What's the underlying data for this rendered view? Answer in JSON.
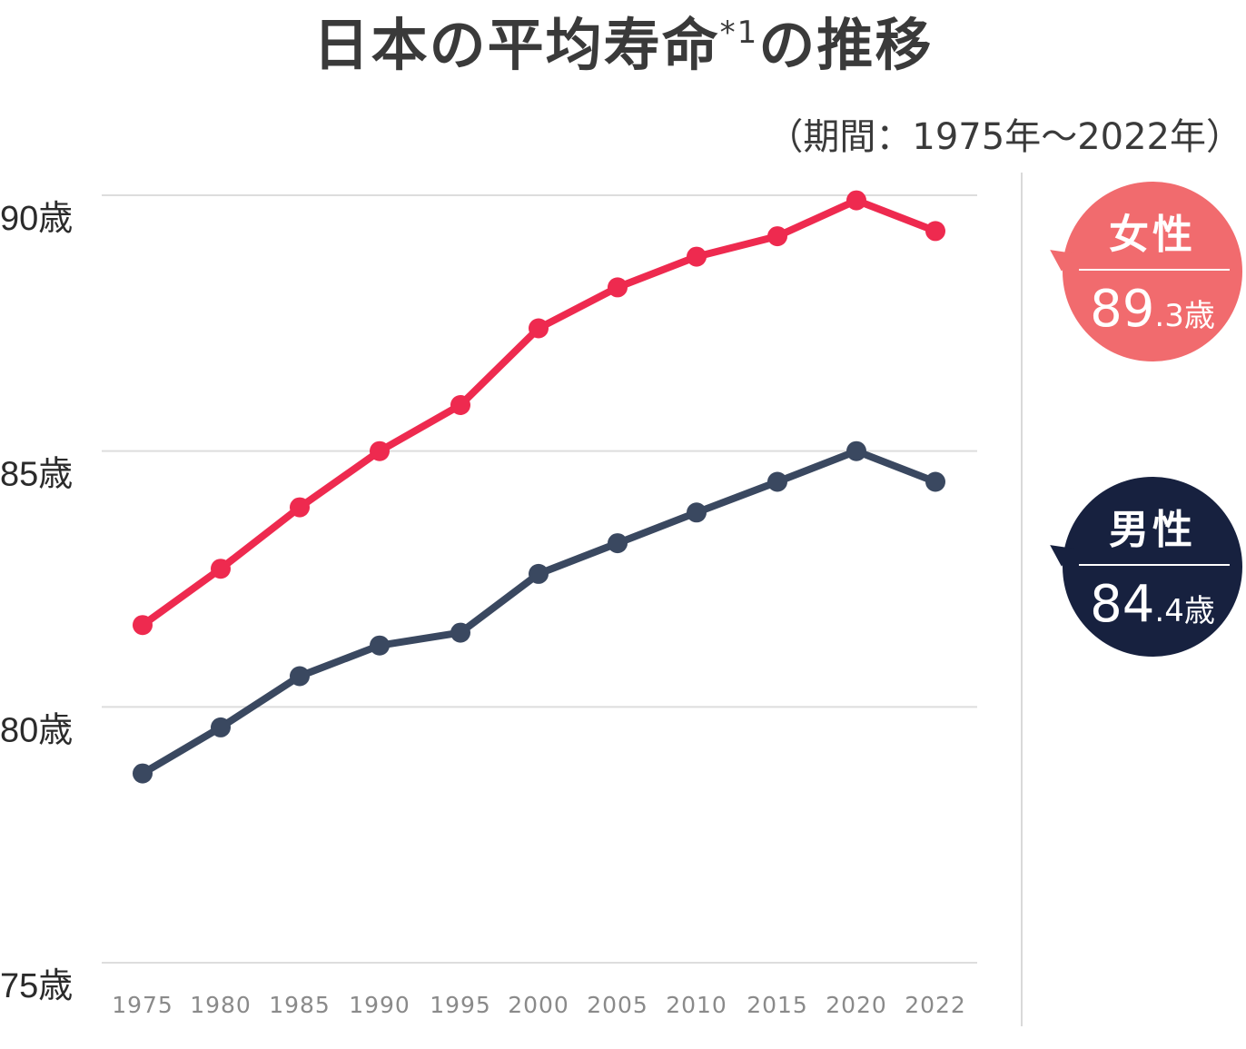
{
  "title": {
    "main": "日本の平均寿命",
    "sup": "*1",
    "suffix": "の推移"
  },
  "period": "（期間：1975年～2022年）",
  "colors": {
    "female": "#ee2a4f",
    "male": "#3a4860",
    "female_badge": "#f16b6e",
    "male_badge": "#17213f",
    "grid": "#dddddd"
  },
  "badges": {
    "female": {
      "label": "女性",
      "value_main": "89",
      "value_small": ".3歳"
    },
    "male": {
      "label": "男性",
      "value_main": "84",
      "value_small": ".4歳"
    }
  },
  "chart_data": {
    "type": "line",
    "title": "日本の平均寿命*1の推移",
    "categories": [
      "1975",
      "1980",
      "1985",
      "1990",
      "1995",
      "2000",
      "2005",
      "2010",
      "2015",
      "2020",
      "2022"
    ],
    "series": [
      {
        "name": "女性",
        "values": [
          81.6,
          82.7,
          83.9,
          85.0,
          85.9,
          87.4,
          88.2,
          88.8,
          89.2,
          89.9,
          89.3
        ]
      },
      {
        "name": "男性",
        "values": [
          78.7,
          79.6,
          80.6,
          81.2,
          81.45,
          82.6,
          83.2,
          83.8,
          84.4,
          85.0,
          84.4
        ]
      }
    ],
    "y_ticks": [
      {
        "value": 90,
        "label": "90歳"
      },
      {
        "value": 85,
        "label": "85歳"
      },
      {
        "value": 80,
        "label": "80歳"
      },
      {
        "value": 75,
        "label": "75歳"
      }
    ],
    "ylim": [
      75,
      90
    ],
    "grid": true
  }
}
